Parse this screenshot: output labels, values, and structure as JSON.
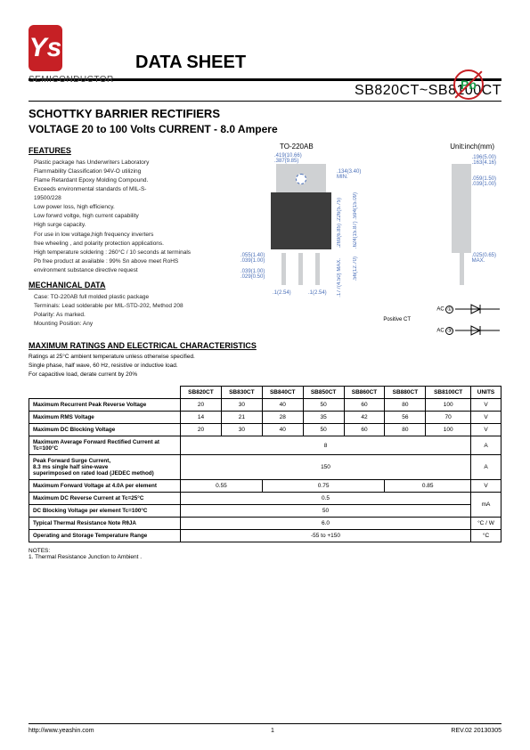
{
  "brand": {
    "logo_text": "Ys",
    "company": "SEMICONDUCTOR"
  },
  "header": {
    "title": "DATA SHEET",
    "model_range": "SB820CT~SB8100CT"
  },
  "product": {
    "title": "SCHOTTKY BARRIER RECTIFIERS",
    "subtitle": "VOLTAGE 20 to 100 Volts CURRENT - 8.0 Ampere"
  },
  "badges": {
    "pb": "Pb"
  },
  "diagram": {
    "pkg_label": "TO-220AB",
    "unit_label": "Unit:inch(mm)",
    "dims": {
      "a": ".419(10.66)",
      "a2": ".387(9.85)",
      "b": ".134(3.40)",
      "b2": "MIN.",
      "c": ".269(6.85)",
      "c2": ".226(5.75)",
      "d": ".624(15.87)",
      "d2": ".594(15.09)",
      "e": ".055(1.40)",
      "e2": ".039(1.00)",
      "f": ".039(1.00)",
      "f2": ".029(0.50)",
      "g": ".177(4.50)",
      "g2": "MAX.",
      "h": ".56(12.70)",
      "i": ".1(2.54)",
      "i2": ".1(2.54)",
      "j": ".196(5.00)",
      "j2": ".163(4.16)",
      "k": ".059(1.50)",
      "k2": ".039(1.00)",
      "l": ".025(0.65)",
      "l2": "MAX."
    },
    "positive_ct": "Positive CT",
    "ac1": "AC",
    "ac2": "AC"
  },
  "features": {
    "heading": "FEATURES",
    "items": [
      "Plastic package has Underwriters Laboratory",
      "Flammability Classification 94V-O utilizing",
      "Flame Retardant Epoxy Molding Compound.",
      "Exceeds environmental standards of MIL-S-",
      "19500/228",
      "Low power loss, high efficiency.",
      "Low forwrd voltge, high current capability",
      "High surge capacity.",
      "For use in low voltage,high frequency inverters",
      "free wheeling , and polarity protection applications.",
      "High temperature soldering : 260°C / 10 seconds at terminals",
      "Pb free product at available : 99% Sn above meet RoHS",
      "environment substance directive request"
    ]
  },
  "mechanical": {
    "heading": "MECHANICAL DATA",
    "items": [
      "Case: TO-220AB full molded plastic package",
      "Terminals: Lead solderable per MIL-STD-202, Method 208",
      "Polarity: As marked.",
      "Mounting Position: Any"
    ]
  },
  "ratings": {
    "heading": "MAXIMUM RATINGS AND ELECTRICAL CHARACTERISTICS",
    "notes": [
      "Ratings at 25°C ambient temperature unless otherwise specified.",
      "Single phase, half wave, 60 Hz, resistive or inductive load.",
      "For capacitive load, derate current by 20%"
    ]
  },
  "table": {
    "columns": [
      "SB820CT",
      "SB830CT",
      "SB840CT",
      "SB850CT",
      "SB860CT",
      "SB880CT",
      "SB8100CT",
      "UNITS"
    ],
    "rows": [
      {
        "label": "Maximum Recurrent Peak Reverse Voltage",
        "vals": [
          "20",
          "30",
          "40",
          "50",
          "60",
          "80",
          "100"
        ],
        "unit": "V"
      },
      {
        "label": "Maximum RMS Voltage",
        "vals": [
          "14",
          "21",
          "28",
          "35",
          "42",
          "56",
          "70"
        ],
        "unit": "V"
      },
      {
        "label": "Maximum DC Blocking Voltage",
        "vals": [
          "20",
          "30",
          "40",
          "50",
          "60",
          "80",
          "100"
        ],
        "unit": "V"
      },
      {
        "label": "Maximum Average Forward Rectified Current at Tc=100°C",
        "span": "8",
        "unit": "A"
      },
      {
        "label": "Peak Forward Surge Current,\n8.3 ms single half sine-wave\nsuperimposed on rated load (JEDEC method)",
        "span": "150",
        "unit": "A"
      },
      {
        "label": "Maximum Forward Voltage at 4.0A per element",
        "groups": [
          [
            "0.55",
            2
          ],
          [
            "0.75",
            3
          ],
          [
            "0.85",
            2
          ]
        ],
        "unit": "V"
      },
      {
        "label": "Maximum DC Reverse Current at Tc=25°C",
        "span": "0.5",
        "unit_rowspan": true,
        "unit": "mA"
      },
      {
        "label": "DC Blocking Voltage per element Tc=100°C",
        "span": "50"
      },
      {
        "label": "Typical Thermal Resistance Note RθJA",
        "span": "6.0",
        "unit": "°C / W"
      },
      {
        "label": "Operating and Storage Temperature Range",
        "span": "-55 to +150",
        "unit": "°C"
      }
    ]
  },
  "notes_section": {
    "heading": "NOTES:",
    "lines": [
      "1. Thermal Resistance Junction to Ambient ."
    ]
  },
  "footer": {
    "url": "http://www.yeashin.com",
    "page": "1",
    "rev": "REV.02 20130305"
  },
  "style": {
    "accent": "#c62025",
    "diagram_color": "#4a6fb8",
    "text_color": "#000000",
    "pkg_gray": "#cfd1d3",
    "pkg_dark": "#3c3c3c"
  }
}
